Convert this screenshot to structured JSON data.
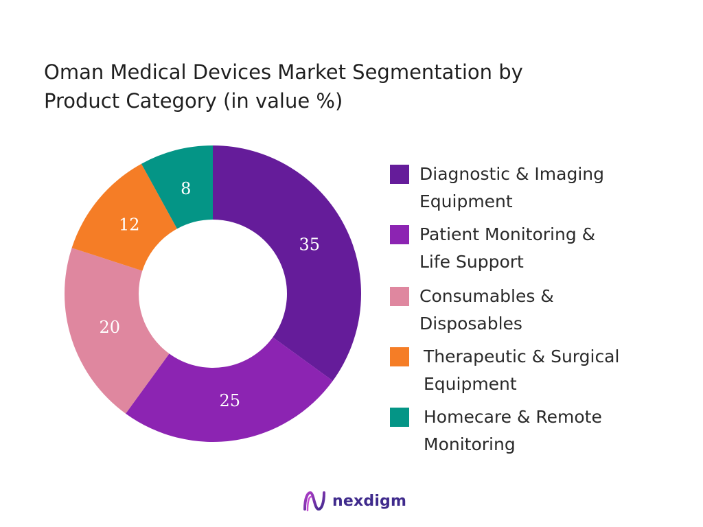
{
  "title_lines": [
    "Oman Medical Devices Market Segmentation by",
    "Product Category (in value %)"
  ],
  "chart_data": {
    "type": "pie",
    "variant": "donut",
    "title": "Oman Medical Devices Market Segmentation by Product Category (in value %)",
    "categories": [
      "Diagnostic & Imaging Equipment",
      "Patient Monitoring & Life Support",
      "Consumables & Disposables",
      "Therapeutic & Surgical Equipment",
      "Homecare & Remote Monitoring"
    ],
    "values": [
      35,
      25,
      20,
      12,
      8
    ],
    "value_labels": [
      "35",
      "25",
      "20",
      "12",
      "8"
    ],
    "colors": [
      "#651c9a",
      "#8c24b2",
      "#df879f",
      "#f57d26",
      "#049586"
    ],
    "start_angle": "12 o'clock",
    "direction": "clockwise",
    "legend_position": "right"
  },
  "legend": [
    {
      "lines": [
        "Diagnostic & Imaging",
        "Equipment"
      ],
      "color": "#651c9a"
    },
    {
      "lines": [
        "Patient Monitoring &",
        "Life Support"
      ],
      "color": "#8c24b2"
    },
    {
      "lines": [
        "Consumables &",
        "Disposables"
      ],
      "color": "#df879f"
    },
    {
      "lines": [
        "Therapeutic & Surgical",
        "Equipment"
      ],
      "color": "#f57d26"
    },
    {
      "lines": [
        "Homecare & Remote",
        "Monitoring"
      ],
      "color": "#049586"
    }
  ],
  "brand": {
    "name": "nexdigm",
    "logo_icon": "nexdigm-logo-icon",
    "color": "#3f2a8c"
  }
}
